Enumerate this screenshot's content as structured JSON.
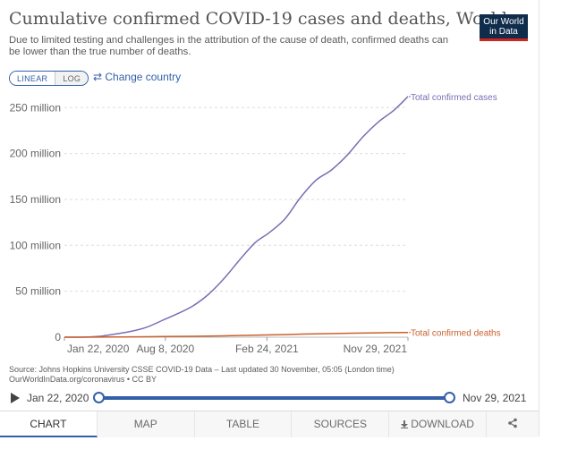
{
  "header": {
    "title": "Cumulative confirmed COVID-19 cases and deaths, World",
    "subtitle": "Due to limited testing and challenges in the attribution of the cause of death, confirmed deaths can be lower than the true number of deaths."
  },
  "logo": {
    "line1": "Our World",
    "line2": "in Data",
    "bg_color": "#0f2c4b",
    "accent_color": "#ce261e"
  },
  "controls": {
    "linear_label": "LINEAR",
    "log_label": "LOG",
    "selected_scale": "LINEAR",
    "change_country_icon": "swap-arrows-icon",
    "change_country_label": "⇄ Change country"
  },
  "chart_data": {
    "type": "line",
    "xlabel": "",
    "ylabel": "",
    "ylim": [
      0,
      260000000
    ],
    "xlim": [
      "2020-01-22",
      "2021-11-29"
    ],
    "y_ticks": [
      0,
      50000000,
      100000000,
      150000000,
      200000000,
      250000000
    ],
    "y_tick_labels": [
      "0",
      "50 million",
      "100 million",
      "150 million",
      "200 million",
      "250 million"
    ],
    "x_ticks": [
      "2020-01-22",
      "2020-08-08",
      "2021-02-24",
      "2021-11-29"
    ],
    "x_tick_labels": [
      "Jan 22, 2020",
      "Aug 8, 2020",
      "Feb 24, 2021",
      "Nov 29, 2021"
    ],
    "grid": "horizontal dashed",
    "series": [
      {
        "name": "Total confirmed cases",
        "color": "#7a6db4",
        "points": [
          [
            "2020-01-22",
            0
          ],
          [
            "2020-03-01",
            100000
          ],
          [
            "2020-04-01",
            1000000
          ],
          [
            "2020-05-01",
            3400000
          ],
          [
            "2020-06-01",
            6300000
          ],
          [
            "2020-07-01",
            10600000
          ],
          [
            "2020-08-01",
            18000000
          ],
          [
            "2020-09-01",
            25600000
          ],
          [
            "2020-10-01",
            34000000
          ],
          [
            "2020-11-01",
            46700000
          ],
          [
            "2020-12-01",
            63500000
          ],
          [
            "2021-01-01",
            84000000
          ],
          [
            "2021-02-01",
            103000000
          ],
          [
            "2021-03-01",
            114000000
          ],
          [
            "2021-04-01",
            129000000
          ],
          [
            "2021-05-01",
            152000000
          ],
          [
            "2021-06-01",
            171000000
          ],
          [
            "2021-07-01",
            182000000
          ],
          [
            "2021-08-01",
            198000000
          ],
          [
            "2021-09-01",
            218000000
          ],
          [
            "2021-10-01",
            234000000
          ],
          [
            "2021-11-01",
            247000000
          ],
          [
            "2021-11-29",
            262000000
          ]
        ]
      },
      {
        "name": "Total confirmed deaths",
        "color": "#c9612c",
        "points": [
          [
            "2020-01-22",
            0
          ],
          [
            "2020-04-01",
            50000
          ],
          [
            "2020-06-01",
            380000
          ],
          [
            "2020-08-01",
            690000
          ],
          [
            "2020-10-01",
            1010000
          ],
          [
            "2020-12-01",
            1480000
          ],
          [
            "2021-02-01",
            2240000
          ],
          [
            "2021-04-01",
            2840000
          ],
          [
            "2021-06-01",
            3700000
          ],
          [
            "2021-08-01",
            4250000
          ],
          [
            "2021-10-01",
            4800000
          ],
          [
            "2021-11-29",
            5200000
          ]
        ]
      }
    ]
  },
  "source": {
    "line1": "Source: Johns Hopkins University CSSE COVID-19 Data – Last updated 30 November, 05:05 (London time)",
    "line2": "OurWorldInData.org/coronavirus • CC BY"
  },
  "timeline": {
    "start_label": "Jan 22, 2020",
    "end_label": "Nov 29, 2021"
  },
  "tabs": [
    {
      "label": "CHART",
      "active": true
    },
    {
      "label": "MAP",
      "active": false
    },
    {
      "label": "TABLE",
      "active": false
    },
    {
      "label": "SOURCES",
      "active": false
    },
    {
      "label": "DOWNLOAD",
      "active": false,
      "icon": "download-icon"
    },
    {
      "label": "",
      "active": false,
      "icon": "share-icon"
    }
  ]
}
